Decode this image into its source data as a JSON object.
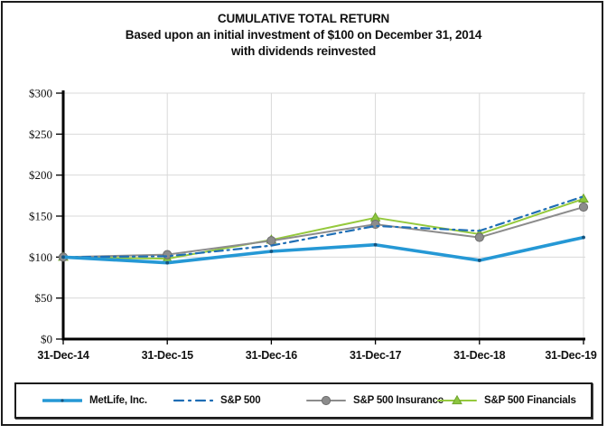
{
  "title": {
    "line1": "CUMULATIVE TOTAL RETURN",
    "line2": "Based upon an initial investment of $100 on December 31, 2014",
    "line3": "with dividends reinvested"
  },
  "axes": {
    "y_tick_labels": [
      "$0",
      "$50",
      "$100",
      "$150",
      "$200",
      "$250",
      "$300"
    ],
    "y_tick_values": [
      0,
      50,
      100,
      150,
      200,
      250,
      300
    ]
  },
  "chart_data": {
    "type": "line",
    "title": "CUMULATIVE TOTAL RETURN",
    "subtitle": "Based upon an initial investment of $100 on December 31, 2014 with dividends reinvested",
    "categories": [
      "31-Dec-14",
      "31-Dec-15",
      "31-Dec-16",
      "31-Dec-17",
      "31-Dec-18",
      "31-Dec-19"
    ],
    "series": [
      {
        "name": "MetLife, Inc.",
        "values": [
          100,
          93,
          107,
          115,
          96,
          124
        ],
        "color": "#2598d5",
        "line_style": "solid-thick",
        "marker": "dot",
        "marker_color": "#15537e",
        "marker_stroke": "#15537e"
      },
      {
        "name": "S&P 500",
        "values": [
          100,
          101,
          114,
          138,
          132,
          174
        ],
        "color": "#1f6eb5",
        "line_style": "dash-dot",
        "marker": "none",
        "marker_color": "",
        "marker_stroke": ""
      },
      {
        "name": "S&P 500 Insurance",
        "values": [
          100,
          103,
          120,
          140,
          124,
          161
        ],
        "color": "#8c8c8c",
        "line_style": "solid",
        "marker": "circle",
        "marker_color": "#8c8c8c",
        "marker_stroke": "#6e6e6e"
      },
      {
        "name": "S&P 500 Financials",
        "values": [
          100,
          98,
          121,
          148,
          128,
          171
        ],
        "color": "#95c93d",
        "line_style": "solid",
        "marker": "triangle",
        "marker_color": "#8cc63e",
        "marker_stroke": "#70a42e"
      }
    ],
    "xlabel": "",
    "ylabel": "",
    "ylim": [
      0,
      300
    ],
    "y_tick_step": 50,
    "grid": true,
    "gridline_color": "#d9d9d9",
    "axis_color": "#000000",
    "legend_position": "bottom"
  }
}
